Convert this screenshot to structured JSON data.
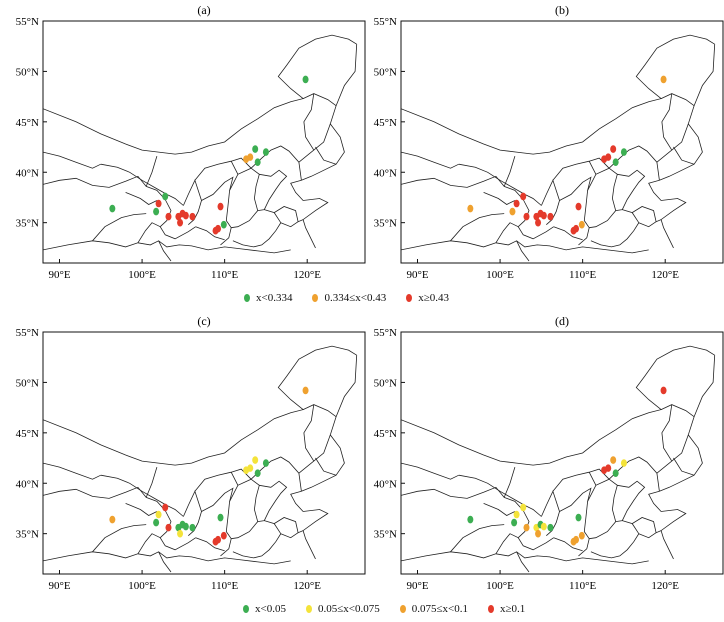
{
  "colors": {
    "green": "#3cae52",
    "yellow": "#f4e33a",
    "orange": "#efa12f",
    "red": "#e43a2b"
  },
  "axes": {
    "lat_ticks": [
      "35°N",
      "40°N",
      "45°N",
      "50°N",
      "55°N"
    ],
    "lon_ticks": [
      "90°E",
      "100°E",
      "110°E",
      "120°E"
    ],
    "lon_range": [
      88,
      127
    ],
    "lat_range": [
      31,
      55
    ]
  },
  "legend_top": [
    {
      "color": "green",
      "label": "x<0.334"
    },
    {
      "color": "orange",
      "label": "0.334≤x<0.43"
    },
    {
      "color": "red",
      "label": "x≥0.43"
    }
  ],
  "legend_bottom": [
    {
      "color": "green",
      "label": "x<0.05"
    },
    {
      "color": "yellow",
      "label": "0.05≤x<0.075"
    },
    {
      "color": "orange",
      "label": "0.075≤x<0.1"
    },
    {
      "color": "red",
      "label": "x≥0.1"
    }
  ],
  "panels": [
    {
      "label": "(a)",
      "points": [
        {
          "lon": 96.4,
          "lat": 36.4,
          "c": "green"
        },
        {
          "lon": 101.7,
          "lat": 36.1,
          "c": "green"
        },
        {
          "lon": 102.0,
          "lat": 36.9,
          "c": "red"
        },
        {
          "lon": 102.8,
          "lat": 37.6,
          "c": "green"
        },
        {
          "lon": 103.2,
          "lat": 35.6,
          "c": "red"
        },
        {
          "lon": 104.4,
          "lat": 35.6,
          "c": "red"
        },
        {
          "lon": 104.6,
          "lat": 35.0,
          "c": "red"
        },
        {
          "lon": 104.9,
          "lat": 35.9,
          "c": "red"
        },
        {
          "lon": 105.3,
          "lat": 35.7,
          "c": "red"
        },
        {
          "lon": 106.1,
          "lat": 35.6,
          "c": "red"
        },
        {
          "lon": 108.9,
          "lat": 34.2,
          "c": "red"
        },
        {
          "lon": 109.2,
          "lat": 34.4,
          "c": "red"
        },
        {
          "lon": 109.5,
          "lat": 36.6,
          "c": "red"
        },
        {
          "lon": 109.9,
          "lat": 34.8,
          "c": "green"
        },
        {
          "lon": 112.6,
          "lat": 41.3,
          "c": "orange"
        },
        {
          "lon": 113.1,
          "lat": 41.5,
          "c": "orange"
        },
        {
          "lon": 113.7,
          "lat": 42.3,
          "c": "green"
        },
        {
          "lon": 114.0,
          "lat": 41.0,
          "c": "green"
        },
        {
          "lon": 115.0,
          "lat": 42.0,
          "c": "green"
        },
        {
          "lon": 119.8,
          "lat": 49.2,
          "c": "green"
        }
      ]
    },
    {
      "label": "(b)",
      "points": [
        {
          "lon": 96.4,
          "lat": 36.4,
          "c": "orange"
        },
        {
          "lon": 101.5,
          "lat": 36.1,
          "c": "orange"
        },
        {
          "lon": 102.0,
          "lat": 36.9,
          "c": "red"
        },
        {
          "lon": 102.8,
          "lat": 37.6,
          "c": "red"
        },
        {
          "lon": 103.2,
          "lat": 35.6,
          "c": "red"
        },
        {
          "lon": 104.4,
          "lat": 35.6,
          "c": "red"
        },
        {
          "lon": 104.6,
          "lat": 35.0,
          "c": "red"
        },
        {
          "lon": 104.9,
          "lat": 35.9,
          "c": "red"
        },
        {
          "lon": 105.3,
          "lat": 35.7,
          "c": "red"
        },
        {
          "lon": 106.1,
          "lat": 35.6,
          "c": "red"
        },
        {
          "lon": 108.9,
          "lat": 34.2,
          "c": "red"
        },
        {
          "lon": 109.2,
          "lat": 34.4,
          "c": "red"
        },
        {
          "lon": 109.5,
          "lat": 36.6,
          "c": "red"
        },
        {
          "lon": 109.9,
          "lat": 34.8,
          "c": "orange"
        },
        {
          "lon": 112.6,
          "lat": 41.3,
          "c": "red"
        },
        {
          "lon": 113.1,
          "lat": 41.5,
          "c": "red"
        },
        {
          "lon": 113.7,
          "lat": 42.3,
          "c": "red"
        },
        {
          "lon": 114.0,
          "lat": 41.0,
          "c": "green"
        },
        {
          "lon": 115.0,
          "lat": 42.0,
          "c": "green"
        },
        {
          "lon": 119.8,
          "lat": 49.2,
          "c": "orange"
        }
      ]
    },
    {
      "label": "(c)",
      "points": [
        {
          "lon": 96.4,
          "lat": 36.4,
          "c": "orange"
        },
        {
          "lon": 101.7,
          "lat": 36.1,
          "c": "green"
        },
        {
          "lon": 102.0,
          "lat": 36.9,
          "c": "yellow"
        },
        {
          "lon": 102.8,
          "lat": 37.6,
          "c": "red"
        },
        {
          "lon": 103.2,
          "lat": 35.6,
          "c": "red"
        },
        {
          "lon": 104.4,
          "lat": 35.6,
          "c": "green"
        },
        {
          "lon": 104.6,
          "lat": 35.0,
          "c": "yellow"
        },
        {
          "lon": 104.9,
          "lat": 35.9,
          "c": "green"
        },
        {
          "lon": 105.3,
          "lat": 35.7,
          "c": "green"
        },
        {
          "lon": 106.1,
          "lat": 35.6,
          "c": "green"
        },
        {
          "lon": 108.9,
          "lat": 34.2,
          "c": "red"
        },
        {
          "lon": 109.2,
          "lat": 34.4,
          "c": "red"
        },
        {
          "lon": 109.5,
          "lat": 36.6,
          "c": "green"
        },
        {
          "lon": 109.9,
          "lat": 34.8,
          "c": "red"
        },
        {
          "lon": 112.6,
          "lat": 41.3,
          "c": "yellow"
        },
        {
          "lon": 113.1,
          "lat": 41.5,
          "c": "yellow"
        },
        {
          "lon": 113.7,
          "lat": 42.3,
          "c": "yellow"
        },
        {
          "lon": 114.0,
          "lat": 41.0,
          "c": "green"
        },
        {
          "lon": 115.0,
          "lat": 42.0,
          "c": "green"
        },
        {
          "lon": 119.8,
          "lat": 49.2,
          "c": "orange"
        }
      ]
    },
    {
      "label": "(d)",
      "points": [
        {
          "lon": 96.4,
          "lat": 36.4,
          "c": "green"
        },
        {
          "lon": 101.7,
          "lat": 36.1,
          "c": "green"
        },
        {
          "lon": 102.0,
          "lat": 36.9,
          "c": "yellow"
        },
        {
          "lon": 102.8,
          "lat": 37.6,
          "c": "yellow"
        },
        {
          "lon": 103.2,
          "lat": 35.6,
          "c": "orange"
        },
        {
          "lon": 104.4,
          "lat": 35.6,
          "c": "yellow"
        },
        {
          "lon": 104.6,
          "lat": 35.0,
          "c": "orange"
        },
        {
          "lon": 104.9,
          "lat": 35.9,
          "c": "green"
        },
        {
          "lon": 105.3,
          "lat": 35.7,
          "c": "yellow"
        },
        {
          "lon": 106.1,
          "lat": 35.6,
          "c": "green"
        },
        {
          "lon": 108.9,
          "lat": 34.2,
          "c": "orange"
        },
        {
          "lon": 109.2,
          "lat": 34.4,
          "c": "orange"
        },
        {
          "lon": 109.5,
          "lat": 36.6,
          "c": "green"
        },
        {
          "lon": 109.9,
          "lat": 34.8,
          "c": "orange"
        },
        {
          "lon": 112.6,
          "lat": 41.3,
          "c": "red"
        },
        {
          "lon": 113.1,
          "lat": 41.5,
          "c": "red"
        },
        {
          "lon": 113.7,
          "lat": 42.3,
          "c": "orange"
        },
        {
          "lon": 114.0,
          "lat": 41.0,
          "c": "green"
        },
        {
          "lon": 115.0,
          "lat": 42.0,
          "c": "yellow"
        },
        {
          "lon": 119.8,
          "lat": 49.2,
          "c": "red"
        }
      ]
    }
  ]
}
